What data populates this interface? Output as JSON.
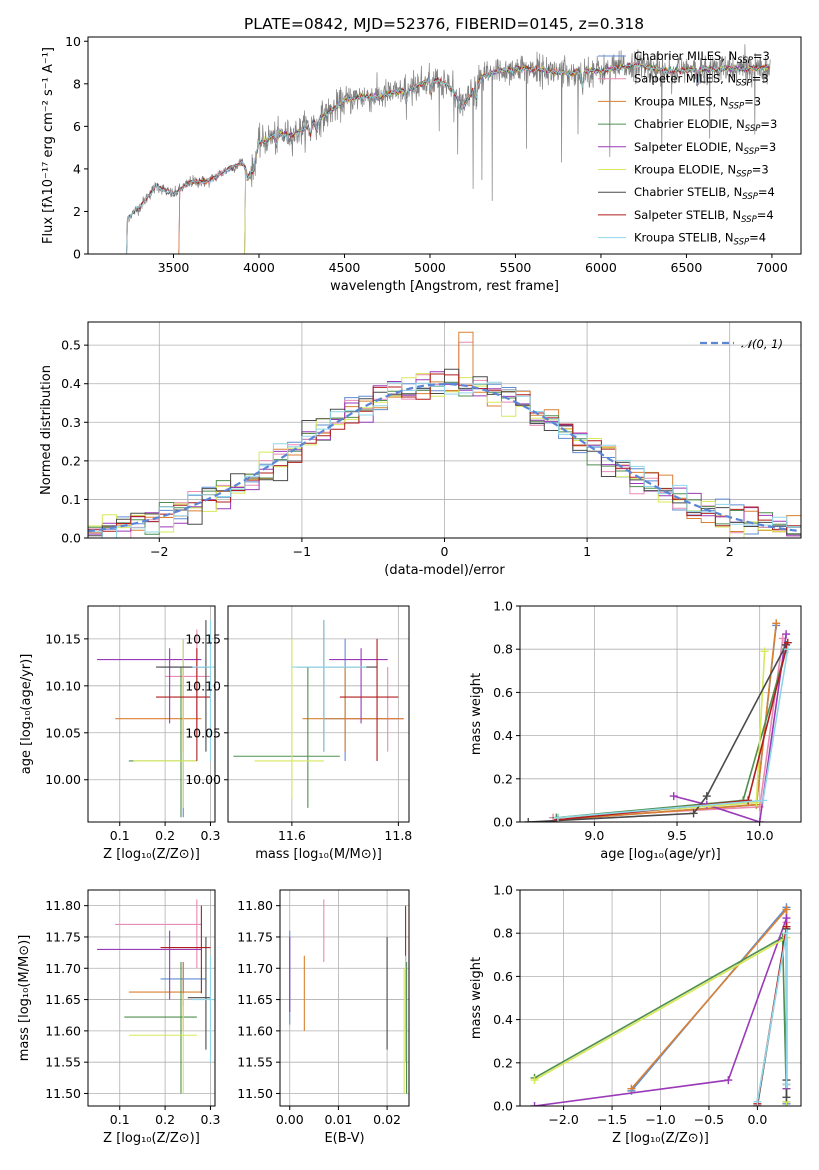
{
  "colors": {
    "Chabrier MILES": "#5f8dd3",
    "Salpeter MILES": "#e98bb4",
    "Kroupa MILES": "#d98032",
    "Chabrier ELODIE": "#4f8f4f",
    "Salpeter ELODIE": "#9a3ab8",
    "Kroupa ELODIE": "#d7e85a",
    "Chabrier STELIB": "#4a4a4a",
    "Salpeter STELIB": "#b01e1e",
    "Kroupa STELIB": "#8fd7e8"
  },
  "chart_data": [
    {
      "id": "spectrum",
      "type": "line",
      "title": "PLATE=0842, MJD=52376, FIBERID=0145, z=0.318",
      "xlabel": "wavelength [Angstrom, rest frame]",
      "ylabel": "Flux [fλ10⁻¹⁷ erg cm⁻² s⁻¹ A⁻¹]",
      "xlim": [
        3000,
        7170
      ],
      "ylim": [
        0,
        10.2
      ],
      "xticks": [
        3500,
        4000,
        4500,
        5000,
        5500,
        6000,
        6500,
        7000
      ],
      "yticks": [
        0,
        2,
        4,
        6,
        8,
        10
      ],
      "grid": false,
      "legend_position": "top-right",
      "legend": [
        "Chabrier MILES, N_SSP=3",
        "Salpeter MILES, N_SSP=3",
        "Kroupa MILES, N_SSP=3",
        "Chabrier ELODIE, N_SSP=3",
        "Salpeter ELODIE, N_SSP=3",
        "Kroupa ELODIE, N_SSP=3",
        "Chabrier STELIB, N_SSP=4",
        "Salpeter STELIB, N_SSP=4",
        "Kroupa STELIB, N_SSP=4"
      ],
      "data_envelope": {
        "x": [
          3220,
          3230,
          3300,
          3400,
          3500,
          3600,
          3700,
          3800,
          3900,
          3950,
          4000,
          4100,
          4200,
          4300,
          4400,
          4500,
          4600,
          4700,
          4800,
          4900,
          5000,
          5100,
          5200,
          5300,
          5400,
          5500,
          5600,
          5700,
          5800,
          5900,
          6000,
          6200,
          6400,
          6600,
          6800,
          7000
        ],
        "y": [
          0,
          1.7,
          2.2,
          3.2,
          2.8,
          3.4,
          3.4,
          3.9,
          4.3,
          3.7,
          5.2,
          5.6,
          5.6,
          6.1,
          6.6,
          7.2,
          7.4,
          7.4,
          7.6,
          7.8,
          8.2,
          8.0,
          7.0,
          8.3,
          8.6,
          8.7,
          8.7,
          8.6,
          8.5,
          8.6,
          8.6,
          8.9,
          8.6,
          8.7,
          8.7,
          8.8
        ]
      }
    },
    {
      "id": "residuals",
      "type": "line",
      "xlabel": "(data-model)/error",
      "ylabel": "Normed distribution",
      "xlim": [
        -2.5,
        2.5
      ],
      "ylim": [
        0,
        0.56
      ],
      "xticks": [
        -2,
        -1,
        0,
        1,
        2
      ],
      "yticks": [
        0.0,
        0.1,
        0.2,
        0.3,
        0.4,
        0.5
      ],
      "grid": true,
      "legend_position": "top-right",
      "legend": [
        "𝒩(0, 1)"
      ],
      "reference": "normal distribution mean 0 sigma 1"
    },
    {
      "id": "age-vs-Z",
      "type": "scatter",
      "xlabel": "Z [log₁₀(Z/Z⊙)]",
      "ylabel": "age  [log₁₀(age/yr)]",
      "xlim": [
        0.03,
        0.31
      ],
      "ylim": [
        9.955,
        10.185
      ],
      "xticks": [
        0.1,
        0.2,
        0.3
      ],
      "yticks": [
        10.0,
        10.05,
        10.1,
        10.15
      ],
      "grid": true
    },
    {
      "id": "age-vs-mass",
      "type": "scatter",
      "xlabel": "mass [log₁₀(M/M⊙)]",
      "xlim": [
        11.48,
        11.82
      ],
      "ylim": [
        9.955,
        10.185
      ],
      "xticks": [
        11.6,
        11.8
      ],
      "yticks": [
        10.0,
        10.05,
        10.1,
        10.15
      ],
      "grid": true
    },
    {
      "id": "weight-vs-age",
      "type": "line",
      "xlabel": "age  [log₁₀(age/yr)]",
      "ylabel": "mass weight",
      "xlim": [
        8.55,
        10.25
      ],
      "ylim": [
        0,
        1.0
      ],
      "xticks": [
        9.0,
        9.5,
        10.0
      ],
      "yticks": [
        0.0,
        0.2,
        0.4,
        0.6,
        0.8,
        1.0
      ],
      "grid": true,
      "series": [
        {
          "name": "Chabrier MILES",
          "x": [
            8.78,
            9.98,
            10.1
          ],
          "y": [
            0.01,
            0.08,
            0.91
          ]
        },
        {
          "name": "Salpeter MILES",
          "x": [
            8.75,
            10.0,
            10.14
          ],
          "y": [
            0.02,
            0.07,
            0.85
          ]
        },
        {
          "name": "Kroupa MILES",
          "x": [
            8.78,
            9.98,
            10.1
          ],
          "y": [
            0.01,
            0.08,
            0.92
          ]
        },
        {
          "name": "Chabrier ELODIE",
          "x": [
            8.77,
            9.9,
            10.16
          ],
          "y": [
            0.02,
            0.1,
            0.8
          ]
        },
        {
          "name": "Salpeter ELODIE",
          "x": [
            9.48,
            9.68,
            10.0,
            10.16
          ],
          "y": [
            0.12,
            0.08,
            0.0,
            0.87
          ]
        },
        {
          "name": "Kroupa ELODIE",
          "x": [
            8.78,
            9.98,
            10.03
          ],
          "y": [
            0.02,
            0.09,
            0.79
          ]
        },
        {
          "name": "Chabrier STELIB",
          "x": [
            8.6,
            9.6,
            9.68,
            10.16
          ],
          "y": [
            0.0,
            0.04,
            0.12,
            0.82
          ]
        },
        {
          "name": "Salpeter STELIB",
          "x": [
            8.78,
            9.93,
            10.17
          ],
          "y": [
            0.01,
            0.1,
            0.83
          ]
        },
        {
          "name": "Kroupa STELIB",
          "x": [
            8.78,
            10.02,
            10.17
          ],
          "y": [
            0.02,
            0.1,
            0.8
          ]
        }
      ]
    },
    {
      "id": "mass-vs-Z",
      "type": "scatter",
      "xlabel": "Z [log₁₀(Z/Z⊙)]",
      "ylabel": "mass [log₁₀(M/M⊙)]",
      "xlim": [
        0.03,
        0.31
      ],
      "ylim": [
        11.48,
        11.825
      ],
      "xticks": [
        0.1,
        0.2,
        0.3
      ],
      "yticks": [
        11.5,
        11.55,
        11.6,
        11.65,
        11.7,
        11.75,
        11.8
      ],
      "grid": true
    },
    {
      "id": "mass-vs-EBV",
      "type": "scatter",
      "xlabel": "E(B-V)",
      "xlim": [
        -0.002,
        0.0245
      ],
      "ylim": [
        11.48,
        11.825
      ],
      "xticks": [
        0.0,
        0.01,
        0.02
      ],
      "yticks": [
        11.5,
        11.55,
        11.6,
        11.65,
        11.7,
        11.75,
        11.8
      ],
      "grid": true
    },
    {
      "id": "weight-vs-Z",
      "type": "line",
      "xlabel": "Z [log₁₀(Z/Z⊙)]",
      "ylabel": "mass weight",
      "xlim": [
        -2.45,
        0.45
      ],
      "ylim": [
        0,
        1.0
      ],
      "xticks": [
        -2.0,
        -1.5,
        -1.0,
        -0.5,
        0.0
      ],
      "yticks": [
        0.0,
        0.2,
        0.4,
        0.6,
        0.8,
        1.0
      ],
      "grid": true,
      "series": [
        {
          "name": "Chabrier MILES",
          "x": [
            -1.3,
            0.3,
            0.3
          ],
          "y": [
            0.07,
            0.92,
            0.01
          ]
        },
        {
          "name": "Salpeter MILES",
          "x": [
            0.3,
            0.3
          ],
          "y": [
            0.02,
            0.85
          ]
        },
        {
          "name": "Kroupa MILES",
          "x": [
            -1.3,
            0.3,
            0.3
          ],
          "y": [
            0.08,
            0.91,
            0.02
          ]
        },
        {
          "name": "Chabrier ELODIE",
          "x": [
            -2.3,
            0.26,
            0.3
          ],
          "y": [
            0.13,
            0.78,
            0.02
          ]
        },
        {
          "name": "Salpeter ELODIE",
          "x": [
            -2.3,
            -0.3,
            0.3,
            0.3
          ],
          "y": [
            0.0,
            0.12,
            0.87,
            0.08
          ]
        },
        {
          "name": "Kroupa ELODIE",
          "x": [
            -2.3,
            0.3,
            0.3
          ],
          "y": [
            0.12,
            0.78,
            0.02
          ]
        },
        {
          "name": "Chabrier STELIB",
          "x": [
            0.0,
            0.3,
            0.3,
            0.3
          ],
          "y": [
            0.0,
            0.82,
            0.12,
            0.04
          ]
        },
        {
          "name": "Salpeter STELIB",
          "x": [
            0.0,
            0.3,
            0.3
          ],
          "y": [
            0.01,
            0.83,
            0.1
          ]
        },
        {
          "name": "Kroupa STELIB",
          "x": [
            0.0,
            0.3,
            0.3
          ],
          "y": [
            0.02,
            0.8,
            0.1
          ]
        }
      ]
    }
  ]
}
